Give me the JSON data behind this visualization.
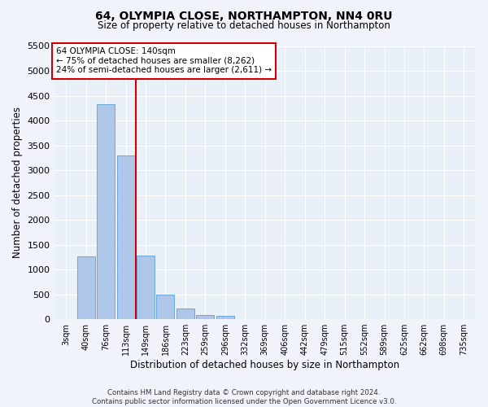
{
  "title_line1": "64, OLYMPIA CLOSE, NORTHAMPTON, NN4 0RU",
  "title_line2": "Size of property relative to detached houses in Northampton",
  "xlabel": "Distribution of detached houses by size in Northampton",
  "ylabel": "Number of detached properties",
  "bar_labels": [
    "3sqm",
    "40sqm",
    "76sqm",
    "113sqm",
    "149sqm",
    "186sqm",
    "223sqm",
    "259sqm",
    "296sqm",
    "332sqm",
    "369sqm",
    "406sqm",
    "442sqm",
    "479sqm",
    "515sqm",
    "552sqm",
    "589sqm",
    "625sqm",
    "662sqm",
    "698sqm",
    "735sqm"
  ],
  "bar_values": [
    0,
    1260,
    4330,
    3300,
    1280,
    490,
    210,
    90,
    60,
    0,
    0,
    0,
    0,
    0,
    0,
    0,
    0,
    0,
    0,
    0,
    0
  ],
  "bar_color": "#aec6e8",
  "bar_edgecolor": "#5a9fd4",
  "ylim": [
    0,
    5500
  ],
  "yticks": [
    0,
    500,
    1000,
    1500,
    2000,
    2500,
    3000,
    3500,
    4000,
    4500,
    5000,
    5500
  ],
  "vline_x": 3.5,
  "vline_color": "#cc0000",
  "annotation_text_line1": "64 OLYMPIA CLOSE: 140sqm",
  "annotation_text_line2": "← 75% of detached houses are smaller (8,262)",
  "annotation_text_line3": "24% of semi-detached houses are larger (2,611) →",
  "bg_color": "#eaf0f8",
  "fig_bg_color": "#f0f4fa",
  "footer_line1": "Contains HM Land Registry data © Crown copyright and database right 2024.",
  "footer_line2": "Contains public sector information licensed under the Open Government Licence v3.0."
}
